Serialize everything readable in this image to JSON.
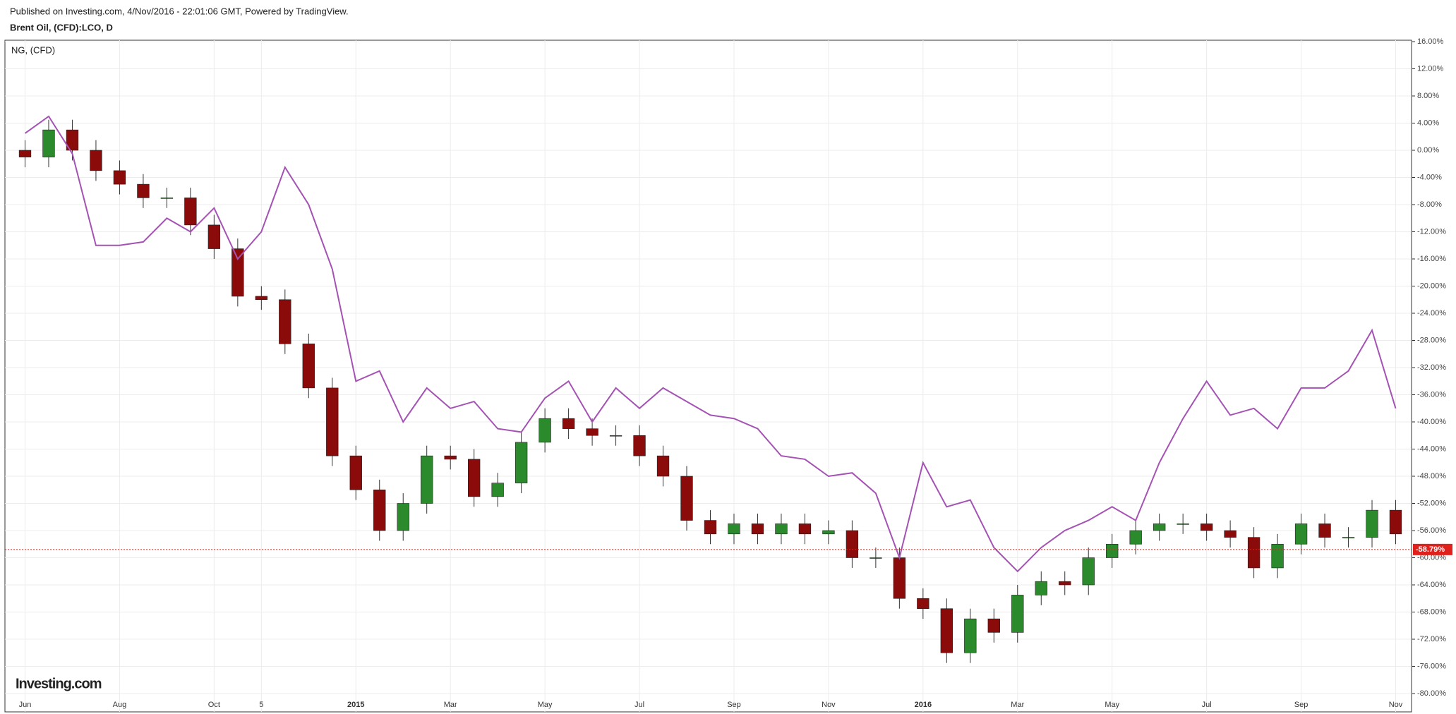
{
  "chart_data": {
    "type": "candlestick",
    "subtitle": "Published on Investing.com, 4/Nov/2016 - 22:01:06 GMT, Powered by TradingView.",
    "title": "Brent Oil, (CFD):LCO, D",
    "logo": "Investing.com",
    "categories": [
      "Jun",
      null,
      null,
      null,
      "Aug",
      null,
      null,
      null,
      "Oct",
      null,
      "5",
      null,
      null,
      null,
      "2015",
      null,
      null,
      null,
      "Mar",
      null,
      null,
      null,
      "May",
      null,
      null,
      null,
      "Jul",
      null,
      null,
      null,
      "Sep",
      null,
      null,
      null,
      "Nov",
      null,
      null,
      null,
      "2016",
      null,
      null,
      null,
      "Mar",
      null,
      null,
      null,
      "May",
      null,
      null,
      null,
      "Jul",
      null,
      null,
      null,
      "Sep",
      null,
      null,
      null,
      "Nov"
    ],
    "ylim": [
      -80,
      16
    ],
    "yticks": [
      {
        "value": 16,
        "label": "16.00%"
      },
      {
        "value": 12,
        "label": "12.00%"
      },
      {
        "value": 8,
        "label": "8.00%"
      },
      {
        "value": 4,
        "label": "4.00%"
      },
      {
        "value": 0,
        "label": "0.00%"
      },
      {
        "value": -4,
        "label": "-4.00%"
      },
      {
        "value": -8,
        "label": "-8.00%"
      },
      {
        "value": -12,
        "label": "-12.00%"
      },
      {
        "value": -16,
        "label": "-16.00%"
      },
      {
        "value": -20,
        "label": "-20.00%"
      },
      {
        "value": -24,
        "label": "-24.00%"
      },
      {
        "value": -28,
        "label": "-28.00%"
      },
      {
        "value": -32,
        "label": "-32.00%"
      },
      {
        "value": -36,
        "label": "-36.00%"
      },
      {
        "value": -40,
        "label": "-40.00%"
      },
      {
        "value": -44,
        "label": "-44.00%"
      },
      {
        "value": -48,
        "label": "-48.00%"
      },
      {
        "value": -52,
        "label": "-52.00%"
      },
      {
        "value": -56,
        "label": "-56.00%"
      },
      {
        "value": -60,
        "label": "-60.00%"
      },
      {
        "value": -64,
        "label": "-64.00%"
      },
      {
        "value": -68,
        "label": "-68.00%"
      },
      {
        "value": -72,
        "label": "-72.00%"
      },
      {
        "value": -76,
        "label": "-76.00%"
      },
      {
        "value": -80,
        "label": "-80.00%"
      }
    ],
    "grid": true,
    "series": [
      {
        "type": "candlestick",
        "up_color": "#2b8a2b",
        "down_color": "#8b0a0a",
        "open": [
          0,
          -1,
          3,
          0,
          -3,
          -5,
          -7,
          -7,
          -11,
          -14.5,
          -21.5,
          -22,
          -28.5,
          -35,
          -45,
          -50,
          -56,
          -52,
          -45,
          -45.5,
          -51,
          -49,
          -43,
          -39.5,
          -41,
          -42,
          -42,
          -45,
          -48,
          -54.5,
          -56.5,
          -55,
          -56.5,
          -55,
          -56.5,
          -56,
          -60,
          -60,
          -66,
          -67.5,
          -74,
          -69,
          -71,
          -65.5,
          -63.5,
          -64,
          -60,
          -58,
          -56,
          -55,
          -55,
          -56,
          -57,
          -61.5,
          -58,
          -55,
          -57,
          -57,
          -53
        ],
        "high": [
          1.5,
          4.5,
          4.5,
          1.5,
          -1.5,
          -3.5,
          -5.5,
          -5.5,
          -9.5,
          -13,
          -20,
          -20.5,
          -27,
          -33.5,
          -43.5,
          -48.5,
          -50.5,
          -43.5,
          -43.5,
          -44,
          -47.5,
          -41.5,
          -38,
          -38,
          -39.5,
          -40.5,
          -40.5,
          -43.5,
          -46.5,
          -53,
          -53.5,
          -53.5,
          -53.5,
          -53.5,
          -54.5,
          -54.5,
          -58.5,
          -58.5,
          -64.5,
          -66,
          -67.5,
          -67.5,
          -64,
          -62,
          -62,
          -58.5,
          -56.5,
          -54.5,
          -53.5,
          -53.5,
          -53.5,
          -54.5,
          -55.5,
          -56.5,
          -53.5,
          -53.5,
          -55.5,
          -51.5,
          -51.5
        ],
        "low": [
          -2.5,
          -2.5,
          -1.5,
          -4.5,
          -6.5,
          -8.5,
          -8.5,
          -12.5,
          -16,
          -23,
          -23.5,
          -30,
          -36.5,
          -46.5,
          -51.5,
          -57.5,
          -57.5,
          -53.5,
          -47,
          -52.5,
          -52.5,
          -50.5,
          -44.5,
          -42.5,
          -43.5,
          -43.5,
          -46.5,
          -49.5,
          -56,
          -58,
          -58,
          -58,
          -58,
          -58,
          -58,
          -61.5,
          -61.5,
          -67.5,
          -69,
          -75.5,
          -75.5,
          -72.5,
          -72.5,
          -67,
          -65.5,
          -65.5,
          -61.5,
          -59.5,
          -57.5,
          -56.5,
          -57.5,
          -58.5,
          -63,
          -63,
          -59.5,
          -58.5,
          -58.5,
          -58.5,
          -58
        ],
        "close": [
          -1,
          3,
          0,
          -3,
          -5,
          -7,
          -7,
          -11,
          -14.5,
          -21.5,
          -22,
          -28.5,
          -35,
          -45,
          -50,
          -56,
          -52,
          -45,
          -45.5,
          -51,
          -49,
          -43,
          -39.5,
          -41,
          -42,
          -42,
          -45,
          -48,
          -54.5,
          -56.5,
          -55,
          -56.5,
          -55,
          -56.5,
          -56,
          -60,
          -60,
          -66,
          -67.5,
          -74,
          -69,
          -71,
          -65.5,
          -63.5,
          -64,
          -60,
          -58,
          -56,
          -55,
          -55,
          -56,
          -57,
          -61.5,
          -58,
          -55,
          -57,
          -57,
          -53,
          -56.5
        ]
      },
      {
        "type": "line",
        "name": "NG,  (CFD)",
        "color": "#a452b3",
        "values": [
          2.5,
          5,
          -0.5,
          -14,
          -14,
          -13.5,
          -10,
          -12,
          -8.5,
          -16,
          -12,
          -2.5,
          -8,
          -17.5,
          -34,
          -32.5,
          -40,
          -35,
          -38,
          -37,
          -41,
          -41.5,
          -36.5,
          -34,
          -40,
          -35,
          -38,
          -35,
          -37,
          -39,
          -39.5,
          -41,
          -45,
          -45.5,
          -48,
          -47.5,
          -50.5,
          -60,
          -46,
          -52.5,
          -51.5,
          -58.5,
          -62,
          -58.5,
          -56,
          -54.5,
          -52.5,
          -54.5,
          -46,
          -39.5,
          -34,
          -39,
          -38,
          -41,
          -35,
          -35,
          -32.5,
          -26.5,
          -38
        ]
      }
    ],
    "last_value": {
      "value": -58.79,
      "label": "-58.79%",
      "color": "#e0201b"
    }
  }
}
